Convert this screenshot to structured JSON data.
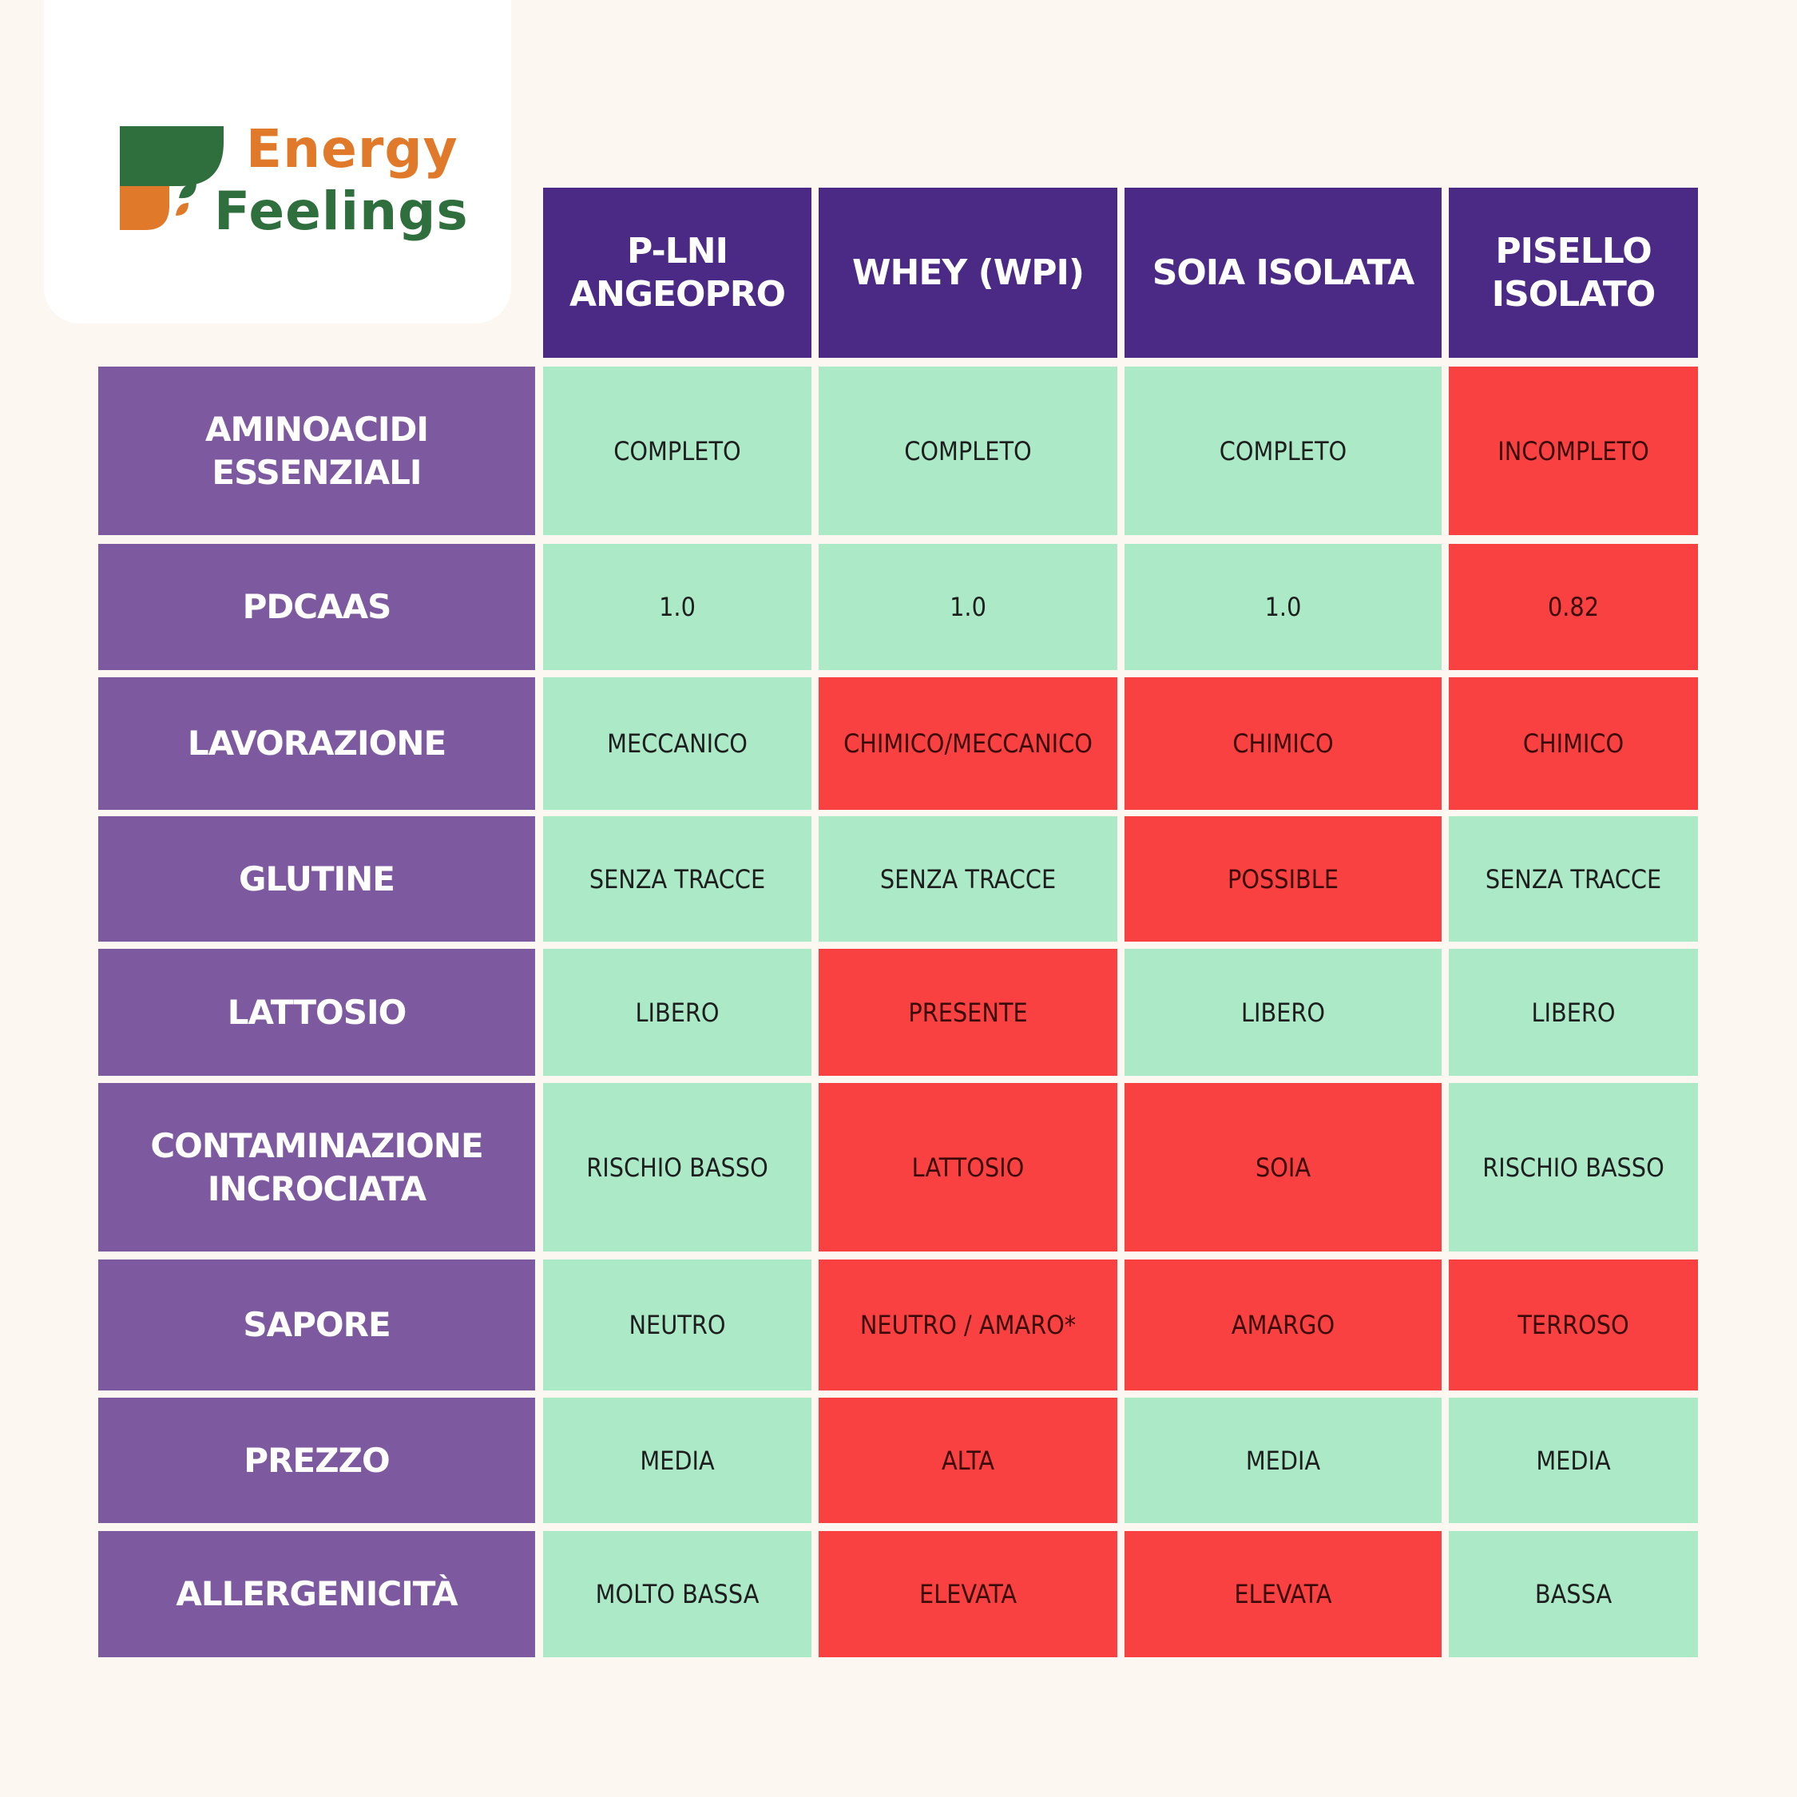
{
  "brand": {
    "line1": "Energy",
    "line2": "Feelings",
    "colors": {
      "orange": "#e07a2a",
      "green": "#2f6e3d"
    }
  },
  "table": {
    "columns": [
      "P-LNI\nANGEOPRO",
      "WHEY (WPI)",
      "SOIA ISOLATA",
      "PISELLO\nISOLATO"
    ],
    "rows": [
      {
        "label": "AMINOACIDI\nESSENZIALI",
        "values": [
          "COMPLETO",
          "COMPLETO",
          "COMPLETO",
          "INCOMPLETO"
        ],
        "status": [
          "good",
          "good",
          "good",
          "bad"
        ]
      },
      {
        "label": "PDCAAS",
        "values": [
          "1.0",
          "1.0",
          "1.0",
          "0.82"
        ],
        "status": [
          "good",
          "good",
          "good",
          "bad"
        ]
      },
      {
        "label": "LAVORAZIONE",
        "values": [
          "MECCANICO",
          "CHIMICO/MECCANICO",
          "CHIMICO",
          "CHIMICO"
        ],
        "status": [
          "good",
          "bad",
          "bad",
          "bad"
        ]
      },
      {
        "label": "GLUTINE",
        "values": [
          "SENZA TRACCE",
          "SENZA TRACCE",
          "POSSIBLE",
          "SENZA TRACCE"
        ],
        "status": [
          "good",
          "good",
          "bad",
          "good"
        ]
      },
      {
        "label": "LATTOSIO",
        "values": [
          "LIBERO",
          "PRESENTE",
          "LIBERO",
          "LIBERO"
        ],
        "status": [
          "good",
          "bad",
          "good",
          "good"
        ]
      },
      {
        "label": "CONTAMINAZIONE\nINCROCIATA",
        "values": [
          "RISCHIO BASSO",
          "LATTOSIO",
          "SOIA",
          "RISCHIO BASSO"
        ],
        "status": [
          "good",
          "bad",
          "bad",
          "good"
        ]
      },
      {
        "label": "SAPORE",
        "values": [
          "NEUTRO",
          "NEUTRO / AMARO*",
          "AMARGO",
          "TERROSO"
        ],
        "status": [
          "good",
          "bad",
          "bad",
          "bad"
        ]
      },
      {
        "label": "PREZZO",
        "values": [
          "MEDIA",
          "ALTA",
          "MEDIA",
          "MEDIA"
        ],
        "status": [
          "good",
          "bad",
          "good",
          "good"
        ]
      },
      {
        "label": "ALLERGENICITÀ",
        "values": [
          "MOLTO BASSA",
          "ELEVATA",
          "ELEVATA",
          "BASSA"
        ],
        "status": [
          "good",
          "bad",
          "bad",
          "good"
        ]
      }
    ]
  },
  "colors": {
    "page_bg": "#fcf8f1",
    "column_header": "#4a2a84",
    "row_header": "#7d5a9f",
    "good": "#abe9c7",
    "bad": "#f94141"
  }
}
